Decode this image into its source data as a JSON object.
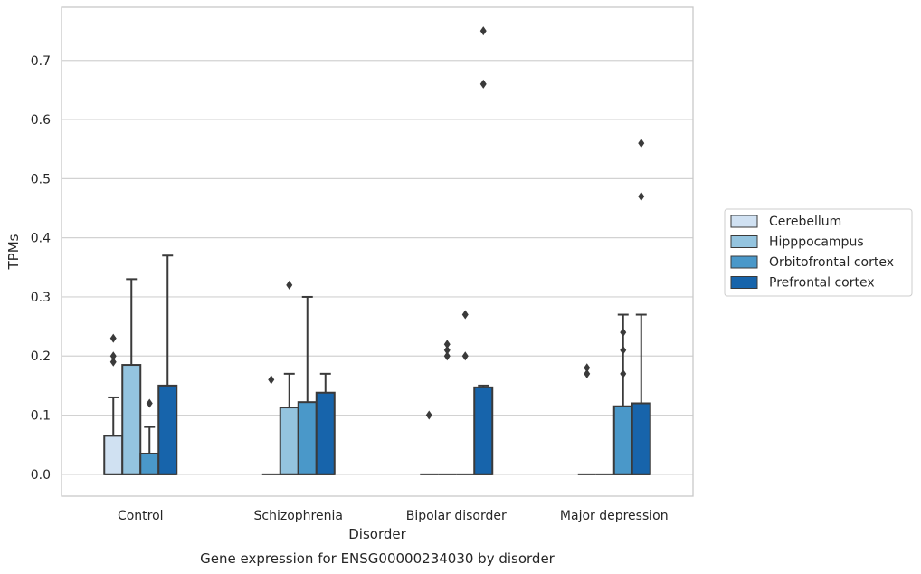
{
  "chart_data": {
    "type": "box",
    "xlabel": "Disorder",
    "ylabel": "TPMs",
    "caption": "Gene expression for ENSG00000234030 by disorder",
    "ylim": [
      -0.037,
      0.79
    ],
    "yticks": [
      "0.0",
      "0.1",
      "0.2",
      "0.3",
      "0.4",
      "0.5",
      "0.6",
      "0.7"
    ],
    "grid": "horizontal",
    "legend_position": "right",
    "categories": [
      "Control",
      "Schizophrenia",
      "Bipolar disorder",
      "Major depression"
    ],
    "series": [
      {
        "name": "Cerebellum",
        "color": "#d0e1f2",
        "boxes": [
          {
            "q1": 0.0,
            "median": 0.0,
            "q3": 0.065,
            "whisker_low": 0.0,
            "whisker_high": 0.13,
            "outliers": [
              0.19,
              0.2,
              0.23
            ]
          },
          {
            "q1": 0.0,
            "median": 0.0,
            "q3": 0.0,
            "whisker_low": 0.0,
            "whisker_high": 0.0,
            "outliers": [
              0.16
            ]
          },
          {
            "q1": 0.0,
            "median": 0.0,
            "q3": 0.0,
            "whisker_low": 0.0,
            "whisker_high": 0.0,
            "outliers": [
              0.1
            ]
          },
          {
            "q1": 0.0,
            "median": 0.0,
            "q3": 0.0,
            "whisker_low": 0.0,
            "whisker_high": 0.0,
            "outliers": [
              0.17,
              0.18
            ]
          }
        ]
      },
      {
        "name": "Hipppocampus",
        "color": "#94c4df",
        "boxes": [
          {
            "q1": 0.0,
            "median": 0.0,
            "q3": 0.185,
            "whisker_low": 0.0,
            "whisker_high": 0.33,
            "outliers": []
          },
          {
            "q1": 0.0,
            "median": 0.0,
            "q3": 0.113,
            "whisker_low": 0.0,
            "whisker_high": 0.17,
            "outliers": [
              0.32
            ]
          },
          {
            "q1": 0.0,
            "median": 0.0,
            "q3": 0.0,
            "whisker_low": 0.0,
            "whisker_high": 0.0,
            "outliers": [
              0.2,
              0.21,
              0.22
            ]
          },
          {
            "q1": 0.0,
            "median": 0.0,
            "q3": 0.0,
            "whisker_low": 0.0,
            "whisker_high": 0.0,
            "outliers": []
          }
        ]
      },
      {
        "name": "Orbitofrontal cortex",
        "color": "#4a98c9",
        "boxes": [
          {
            "q1": 0.0,
            "median": 0.0,
            "q3": 0.035,
            "whisker_low": 0.0,
            "whisker_high": 0.08,
            "outliers": [
              0.12
            ]
          },
          {
            "q1": 0.0,
            "median": 0.0,
            "q3": 0.122,
            "whisker_low": 0.0,
            "whisker_high": 0.3,
            "outliers": []
          },
          {
            "q1": 0.0,
            "median": 0.0,
            "q3": 0.0,
            "whisker_low": 0.0,
            "whisker_high": 0.0,
            "outliers": [
              0.2,
              0.27
            ]
          },
          {
            "q1": 0.0,
            "median": 0.0,
            "q3": 0.115,
            "whisker_low": 0.0,
            "whisker_high": 0.27,
            "outliers": [
              0.17,
              0.21,
              0.24
            ]
          }
        ]
      },
      {
        "name": "Prefrontal cortex",
        "color": "#1764ab",
        "boxes": [
          {
            "q1": 0.0,
            "median": 0.0,
            "q3": 0.15,
            "whisker_low": 0.0,
            "whisker_high": 0.37,
            "outliers": []
          },
          {
            "q1": 0.0,
            "median": 0.0,
            "q3": 0.138,
            "whisker_low": 0.0,
            "whisker_high": 0.17,
            "outliers": []
          },
          {
            "q1": 0.0,
            "median": 0.0,
            "q3": 0.147,
            "whisker_low": 0.0,
            "whisker_high": 0.15,
            "outliers": [
              0.66,
              0.75
            ]
          },
          {
            "q1": 0.0,
            "median": 0.0,
            "q3": 0.12,
            "whisker_low": 0.0,
            "whisker_high": 0.27,
            "outliers": [
              0.47,
              0.56
            ]
          }
        ]
      }
    ]
  },
  "style": {
    "edge_color": "#3a3a3a",
    "grid_color": "#d2d2d2",
    "frame_color": "#c8c8c8"
  }
}
